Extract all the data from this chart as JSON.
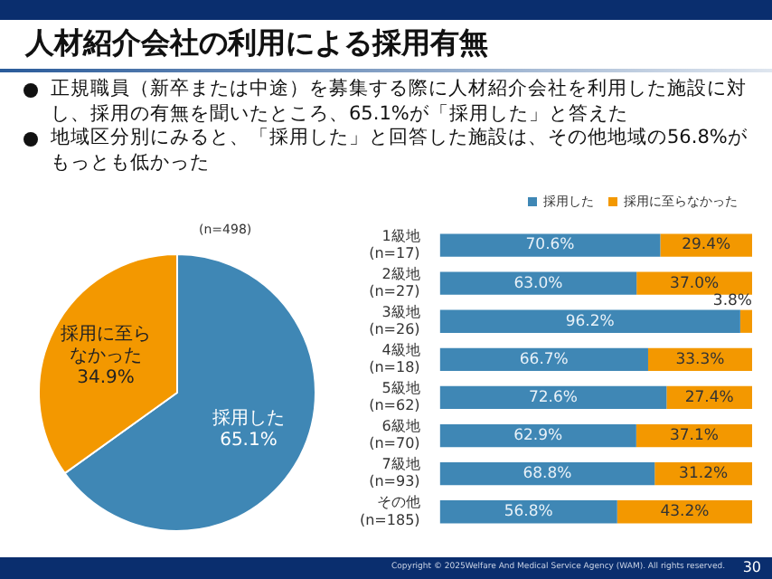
{
  "chart_data": [
    {
      "type": "pie",
      "title": "人材紹介会社の利用による採用有無",
      "subtitle": "(n=498)",
      "annotations": [
        "正規職員（新卒または中途）を募集する際に人材紹介会社を利用した施設に対し、採用の有無を聞いたところ、65.1%が「採用した」と答えた",
        "地域区分別にみると、「採用した」と回答した施設は、その他地域の56.8%がもっとも低かった"
      ],
      "categories": [
        "採用した",
        "採用に至らなかった"
      ],
      "values": [
        65.1,
        34.9
      ],
      "colors": [
        "#3f87b5",
        "#f39800"
      ],
      "value_labels": [
        "65.1%",
        "34.9%"
      ],
      "legend": false
    },
    {
      "type": "bar",
      "orientation": "horizontal",
      "stacked": true,
      "legend": "top right",
      "categories": [
        "1級地\n(n=17)",
        "2級地\n(n=27)",
        "3級地\n(n=26)",
        "4級地\n(n=18)",
        "5級地\n(n=62)",
        "6級地\n(n=70)",
        "7級地\n(n=93)",
        "その他\n(n=185)"
      ],
      "series": [
        {
          "name": "採用した",
          "color": "#3f87b5",
          "values": [
            70.6,
            63.0,
            96.2,
            66.7,
            72.6,
            62.9,
            68.8,
            56.8
          ],
          "value_labels": [
            "70.6%",
            "63.0%",
            "96.2%",
            "66.7%",
            "72.6%",
            "62.9%",
            "68.8%",
            "56.8%"
          ]
        },
        {
          "name": "採用に至らなかった",
          "color": "#f39800",
          "values": [
            29.4,
            37.0,
            3.8,
            33.3,
            27.4,
            37.1,
            31.2,
            43.2
          ],
          "value_labels": [
            "29.4%",
            "37.0%",
            "3.8%",
            "33.3%",
            "27.4%",
            "37.1%",
            "31.2%",
            "43.2%"
          ]
        }
      ],
      "tick_labels": "y",
      "annotations": [
        "Copyright © 2025Welfare And Medical Service Agency (WAM). All rights reserved.",
        "30"
      ]
    }
  ]
}
